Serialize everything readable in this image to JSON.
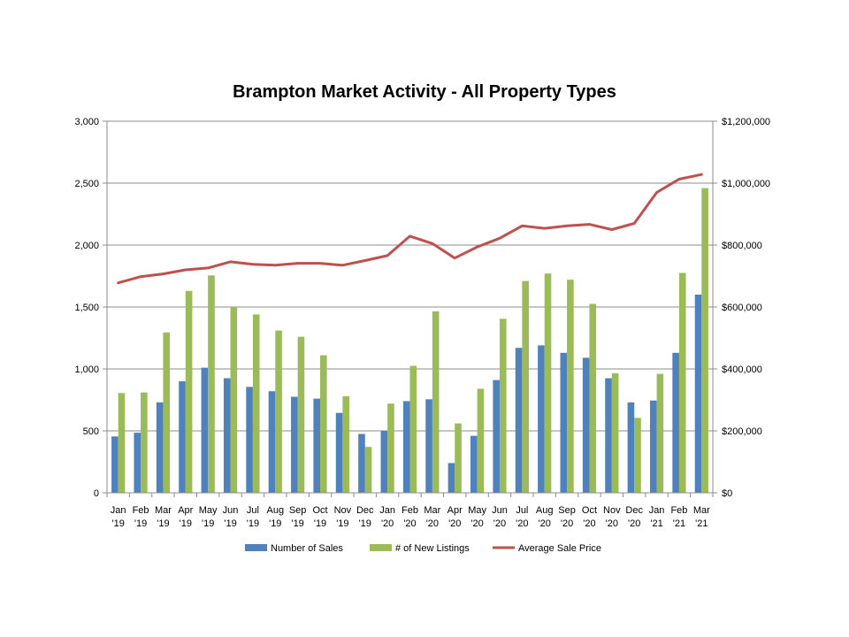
{
  "chart_data": {
    "type": "bar",
    "title": "Brampton Market Activity - All Property Types",
    "categories": [
      [
        "Jan",
        "'19"
      ],
      [
        "Feb",
        "'19"
      ],
      [
        "Mar",
        "'19"
      ],
      [
        "Apr",
        "'19"
      ],
      [
        "May",
        "'19"
      ],
      [
        "Jun",
        "'19"
      ],
      [
        "Jul",
        "'19"
      ],
      [
        "Aug",
        "'19"
      ],
      [
        "Sep",
        "'19"
      ],
      [
        "Oct",
        "'19"
      ],
      [
        "Nov",
        "'19"
      ],
      [
        "Dec",
        "'19"
      ],
      [
        "Jan",
        "'20"
      ],
      [
        "Feb",
        "'20"
      ],
      [
        "Mar",
        "'20"
      ],
      [
        "Apr",
        "'20"
      ],
      [
        "May",
        "'20"
      ],
      [
        "Jun",
        "'20"
      ],
      [
        "Jul",
        "'20"
      ],
      [
        "Aug",
        "'20"
      ],
      [
        "Sep",
        "'20"
      ],
      [
        "Oct",
        "'20"
      ],
      [
        "Nov",
        "'20"
      ],
      [
        "Dec",
        "'20"
      ],
      [
        "Jan",
        "'21"
      ],
      [
        "Feb",
        "'21"
      ],
      [
        "Mar",
        "'21"
      ]
    ],
    "series": [
      {
        "name": "Number of Sales",
        "type": "bar",
        "axis": "left",
        "color": "#4f81bd",
        "values": [
          455,
          485,
          730,
          900,
          1010,
          925,
          855,
          820,
          775,
          760,
          645,
          475,
          500,
          740,
          755,
          240,
          460,
          910,
          1170,
          1190,
          1130,
          1090,
          925,
          730,
          745,
          1130,
          1600
        ]
      },
      {
        "name": "# of New Listings",
        "type": "bar",
        "axis": "left",
        "color": "#9bbb59",
        "values": [
          805,
          810,
          1295,
          1630,
          1755,
          1500,
          1440,
          1310,
          1260,
          1110,
          780,
          370,
          720,
          1025,
          1465,
          560,
          840,
          1405,
          1710,
          1770,
          1720,
          1525,
          965,
          605,
          960,
          1775,
          2460
        ]
      },
      {
        "name": "Average Sale Price",
        "type": "line",
        "axis": "right",
        "color": "#c0504d",
        "values": [
          678000,
          698000,
          707000,
          720000,
          726000,
          746000,
          738000,
          735000,
          741000,
          741000,
          735000,
          750000,
          766000,
          829000,
          805000,
          758000,
          794000,
          822000,
          862000,
          854000,
          862000,
          867000,
          850000,
          870000,
          970000,
          1013000,
          1028000
        ]
      }
    ],
    "left_axis": {
      "min": 0,
      "max": 3000,
      "step": 500,
      "tick_labels": [
        "0",
        "500",
        "1,000",
        "1,500",
        "2,000",
        "2,500",
        "3,000"
      ]
    },
    "right_axis": {
      "min": 0,
      "max": 1200000,
      "step": 200000,
      "tick_labels": [
        "$0",
        "$200,000",
        "$400,000",
        "$600,000",
        "$800,000",
        "$1,000,000",
        "$1,200,000"
      ]
    },
    "grid": true,
    "legend_position": "bottom"
  }
}
